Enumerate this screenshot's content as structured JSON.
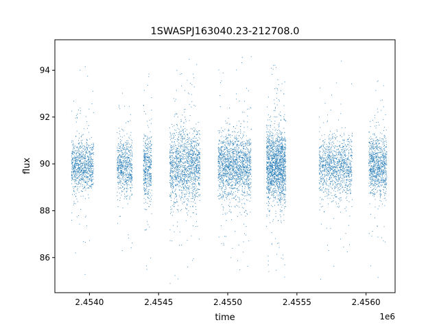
{
  "chart_data": {
    "type": "scatter",
    "title": "1SWASPJ163040.23-212708.0",
    "xlabel": "time",
    "ylabel": "flux",
    "x_offset_label": "1e6",
    "xlim": [
      2453750,
      2456210
    ],
    "ylim": [
      84.5,
      95.3
    ],
    "x_ticks": [
      2454000,
      2454500,
      2455000,
      2455500,
      2456000
    ],
    "x_tick_labels": [
      "2.4540",
      "2.4545",
      "2.4550",
      "2.4555",
      "2.4560"
    ],
    "y_ticks": [
      86,
      88,
      90,
      92,
      94
    ],
    "y_tick_labels": [
      "86",
      "88",
      "90",
      "92",
      "94"
    ],
    "grid": false,
    "legend": "none",
    "point_color": "#1f77b4",
    "seasons": [
      {
        "start": 2453870,
        "end": 2454030,
        "weight": 1.0,
        "sigma": 0.55
      },
      {
        "start": 2454200,
        "end": 2454310,
        "weight": 0.7,
        "sigma": 0.6
      },
      {
        "start": 2454390,
        "end": 2454450,
        "weight": 0.5,
        "sigma": 0.7
      },
      {
        "start": 2454580,
        "end": 2454800,
        "weight": 1.6,
        "sigma": 0.75
      },
      {
        "start": 2454930,
        "end": 2455170,
        "weight": 1.8,
        "sigma": 0.7
      },
      {
        "start": 2455280,
        "end": 2455420,
        "weight": 1.8,
        "sigma": 0.75
      },
      {
        "start": 2455660,
        "end": 2455900,
        "weight": 1.3,
        "sigma": 0.6
      },
      {
        "start": 2456020,
        "end": 2456150,
        "weight": 1.0,
        "sigma": 0.6
      }
    ],
    "median_flux": 89.9,
    "n_points": 9000
  }
}
